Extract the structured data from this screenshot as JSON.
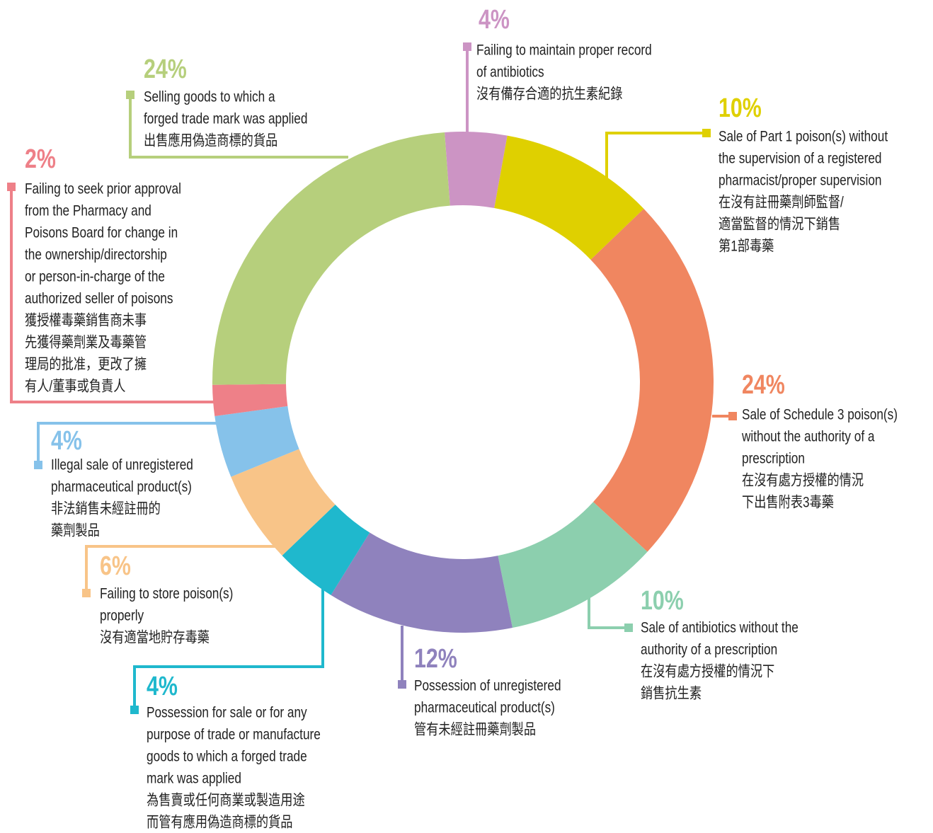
{
  "chart_data": {
    "type": "donut",
    "values": [
      4,
      10,
      24,
      10,
      12,
      4,
      6,
      4,
      2,
      24
    ],
    "value_labels": [
      "4%",
      "10%",
      "24%",
      "10%",
      "12%",
      "4%",
      "6%",
      "4%",
      "2%",
      "24%"
    ],
    "colors": [
      "#cc94c4",
      "#dfd000",
      "#f08660",
      "#8ccfae",
      "#8f82bd",
      "#1fb8cd",
      "#f8c488",
      "#86c2ea",
      "#ee8088",
      "#b6cf7c"
    ],
    "labels": [
      [
        "Failing to maintain proper record",
        "of antibiotics",
        "沒有備存合適的抗生素紀錄"
      ],
      [
        "Sale of Part 1 poison(s) without",
        "the supervision of a registered",
        "pharmacist/proper supervision",
        "在沒有註冊藥劑師監督/",
        "適當監督的情況下銷售",
        "第1部毒藥"
      ],
      [
        "Sale of Schedule 3 poison(s)",
        "without the authority of a",
        "prescription",
        "在沒有處方授權的情況",
        "下出售附表3毒藥"
      ],
      [
        "Sale of antibiotics without the",
        "authority of a prescription",
        "在沒有處方授權的情況下",
        "銷售抗生素"
      ],
      [
        "Possession of unregistered",
        "pharmaceutical product(s)",
        "管有未經註冊藥劑製品"
      ],
      [
        "Possession for sale or for any",
        "purpose of trade or manufacture",
        "goods to which a forged trade",
        "mark was applied",
        "為售賣或任何商業或製造用途",
        "而管有應用偽造商標的貨品"
      ],
      [
        "Failing to store poison(s)",
        "properly",
        "沒有適當地貯存毒藥"
      ],
      [
        "Illegal sale of unregistered",
        "pharmaceutical product(s)",
        "非法銷售未經註冊的",
        "藥劑製品"
      ],
      [
        "Failing to seek prior approval",
        "from the Pharmacy and",
        "Poisons Board for change in",
        "the ownership/directorship",
        "or person-in-charge of the",
        "authorized seller of poisons",
        "獲授權毒藥銷售商未事",
        "先獲得藥劑業及毒藥管",
        "理局的批准，更改了擁",
        "有人/董事或負責人"
      ],
      [
        "Selling goods to which a",
        "forged trade mark was applied",
        "出售應用偽造商標的貨品"
      ]
    ]
  }
}
